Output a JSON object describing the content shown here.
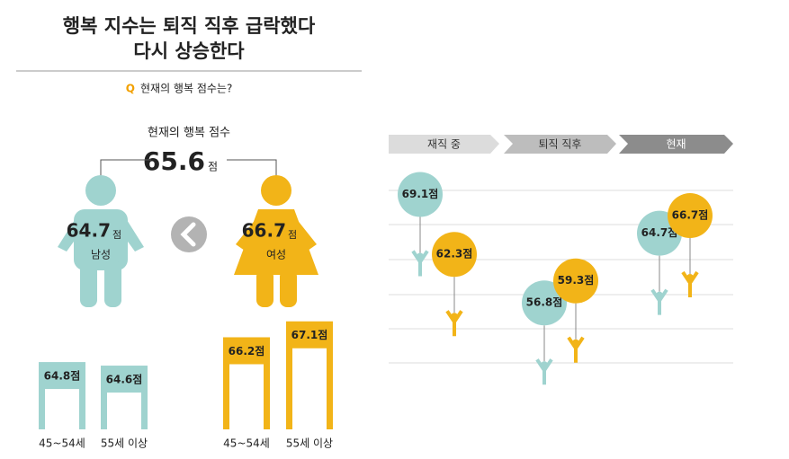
{
  "title_lines": [
    "행복 지수는 퇴직 직후 급락했다",
    "다시 상승한다"
  ],
  "question": {
    "marker": "Q",
    "text": "현재의 행복 점수는?"
  },
  "overall": {
    "label": "현재의 행복 점수",
    "value": 65.6
  },
  "unit": "점",
  "gender_scores": [
    64.7,
    66.7
  ],
  "chart_data": [
    {
      "type": "bar",
      "categories": [
        "45~54세",
        "55세 이상"
      ],
      "series": [
        {
          "name": "남성",
          "color": "#9fd3cf",
          "values": [
            64.8,
            64.6
          ],
          "value_labels": [
            "64.8점",
            "64.6점"
          ]
        },
        {
          "name": "여성",
          "color": "#f2b418",
          "values": [
            66.2,
            67.1
          ],
          "value_labels": [
            "66.2점",
            "67.1점"
          ]
        }
      ],
      "ylim": [
        61,
        68
      ]
    },
    {
      "type": "balloon",
      "categories": [
        "재직 중",
        "퇴직 직후",
        "현재"
      ],
      "series": [
        {
          "color": "#9fd3cf",
          "values": [
            69.1,
            56.8,
            64.7
          ],
          "value_labels": [
            "69.1점",
            "56.8점",
            "64.7점"
          ]
        },
        {
          "color": "#f2b418",
          "values": [
            62.3,
            59.3,
            66.7
          ],
          "value_labels": [
            "62.3점",
            "59.3점",
            "66.7점"
          ]
        }
      ],
      "ylim": [
        50,
        72
      ]
    }
  ]
}
